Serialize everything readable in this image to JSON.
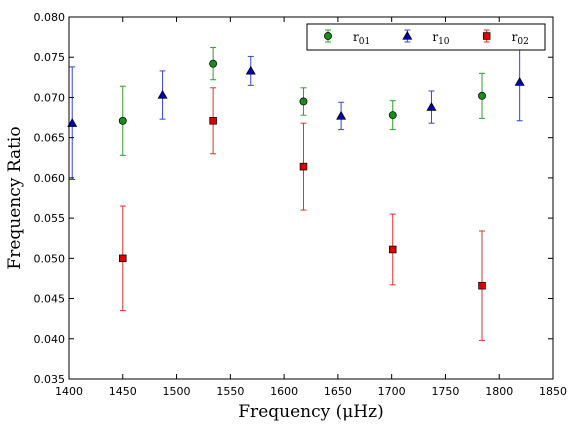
{
  "chart_data": {
    "type": "scatter",
    "title": "",
    "xlabel": "Frequency  (μHz)",
    "ylabel": "Frequency Ratio",
    "xlim": [
      1400,
      1850
    ],
    "ylim": [
      0.035,
      0.08
    ],
    "xticks": [
      1400,
      1450,
      1500,
      1550,
      1600,
      1650,
      1700,
      1750,
      1800,
      1850
    ],
    "yticks": [
      0.035,
      0.04,
      0.045,
      0.05,
      0.055,
      0.06,
      0.065,
      0.07,
      0.075,
      0.08
    ],
    "ytick_decimals": 3,
    "grid": false,
    "legend_position": "top-right",
    "series": [
      {
        "name": "r₀₁",
        "label_main": "r",
        "label_sub": "01",
        "marker": "circle",
        "color": "#1a8c1a",
        "error_color": "#2ca02c",
        "points": [
          {
            "x": 1450,
            "y": 0.0671,
            "err": 0.0043
          },
          {
            "x": 1534,
            "y": 0.0742,
            "err": 0.002
          },
          {
            "x": 1618,
            "y": 0.0695,
            "err": 0.0017
          },
          {
            "x": 1701,
            "y": 0.0678,
            "err": 0.0018
          },
          {
            "x": 1784,
            "y": 0.0702,
            "err": 0.0028
          }
        ]
      },
      {
        "name": "r₁₀",
        "label_main": "r",
        "label_sub": "10",
        "marker": "triangle",
        "color": "#0000b3",
        "error_color": "#3344dd",
        "points": [
          {
            "x": 1403,
            "y": 0.0668,
            "err": 0.007
          },
          {
            "x": 1487,
            "y": 0.0703,
            "err": 0.003
          },
          {
            "x": 1569,
            "y": 0.0733,
            "err": 0.0018
          },
          {
            "x": 1653,
            "y": 0.0677,
            "err": 0.0017
          },
          {
            "x": 1737,
            "y": 0.0688,
            "err": 0.002
          },
          {
            "x": 1819,
            "y": 0.0719,
            "err": 0.0048
          }
        ]
      },
      {
        "name": "r₀₂",
        "label_main": "r",
        "label_sub": "02",
        "marker": "square",
        "color": "#dd0000",
        "error_color": "#e03030",
        "points": [
          {
            "x": 1450,
            "y": 0.05,
            "err": 0.0065
          },
          {
            "x": 1534,
            "y": 0.0671,
            "err": 0.0041
          },
          {
            "x": 1618,
            "y": 0.0614,
            "err": 0.0054
          },
          {
            "x": 1701,
            "y": 0.0511,
            "err": 0.0044
          },
          {
            "x": 1784,
            "y": 0.0466,
            "err": 0.0068
          }
        ]
      }
    ]
  }
}
